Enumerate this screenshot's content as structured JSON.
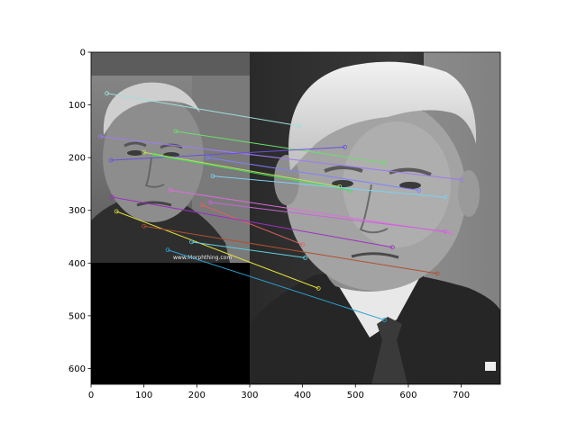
{
  "chart_data": {
    "type": "scatter",
    "title": "",
    "xlabel": "",
    "ylabel": "",
    "xlim": [
      0,
      774
    ],
    "ylim": [
      630,
      0
    ],
    "y_inverted": true,
    "grid": false,
    "x_ticks": [
      0,
      100,
      200,
      300,
      400,
      500,
      600,
      700
    ],
    "y_ticks": [
      0,
      100,
      200,
      300,
      400,
      500,
      600
    ],
    "image_panels": [
      {
        "name": "left-image",
        "x_range": [
          0,
          300
        ],
        "y_range": [
          0,
          400
        ],
        "content": "grayscale face photo"
      },
      {
        "name": "black-padding",
        "x_range": [
          0,
          300
        ],
        "y_range": [
          400,
          630
        ],
        "content": "black"
      },
      {
        "name": "right-image",
        "x_range": [
          300,
          774
        ],
        "y_range": [
          0,
          630
        ],
        "content": "grayscale face photo"
      }
    ],
    "watermark_text": "www.Morphthing.com",
    "matches": [
      {
        "from": [
          30,
          78
        ],
        "to": [
          395,
          140
        ],
        "color": "#9fe0d8"
      },
      {
        "from": [
          18,
          160
        ],
        "to": [
          700,
          242
        ],
        "color": "#9c7cf0"
      },
      {
        "from": [
          160,
          150
        ],
        "to": [
          555,
          210
        ],
        "color": "#6be06b"
      },
      {
        "from": [
          38,
          205
        ],
        "to": [
          480,
          180
        ],
        "color": "#6a4fe0"
      },
      {
        "from": [
          100,
          190
        ],
        "to": [
          470,
          255
        ],
        "color": "#c0e060"
      },
      {
        "from": [
          120,
          195
        ],
        "to": [
          490,
          262
        ],
        "color": "#40e050"
      },
      {
        "from": [
          220,
          200
        ],
        "to": [
          620,
          262
        ],
        "color": "#8080ff"
      },
      {
        "from": [
          230,
          235
        ],
        "to": [
          670,
          275
        ],
        "color": "#7fd0f0"
      },
      {
        "from": [
          150,
          262
        ],
        "to": [
          680,
          343
        ],
        "color": "#e06ce0"
      },
      {
        "from": [
          225,
          285
        ],
        "to": [
          670,
          340
        ],
        "color": "#c864d8"
      },
      {
        "from": [
          210,
          290
        ],
        "to": [
          400,
          365
        ],
        "color": "#e06060"
      },
      {
        "from": [
          40,
          275
        ],
        "to": [
          570,
          370
        ],
        "color": "#9b30c0"
      },
      {
        "from": [
          48,
          302
        ],
        "to": [
          430,
          448
        ],
        "color": "#e0e040"
      },
      {
        "from": [
          100,
          330
        ],
        "to": [
          655,
          420
        ],
        "color": "#b05030"
      },
      {
        "from": [
          145,
          375
        ],
        "to": [
          555,
          508
        ],
        "color": "#30a0d0"
      },
      {
        "from": [
          190,
          360
        ],
        "to": [
          405,
          390
        ],
        "color": "#60d0e0"
      }
    ]
  }
}
